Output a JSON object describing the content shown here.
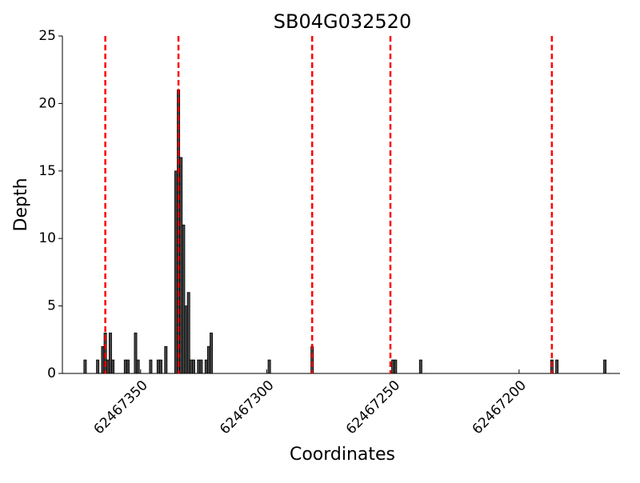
{
  "chart_data": {
    "type": "bar",
    "title": "SB04G032520",
    "xlabel": "Coordinates",
    "ylabel": "Depth",
    "x": [
      62467372,
      62467367,
      62467365,
      62467364,
      62467363,
      62467362,
      62467361,
      62467356,
      62467355,
      62467352,
      62467351,
      62467346,
      62467343,
      62467342,
      62467340,
      62467336,
      62467335,
      62467334,
      62467333,
      62467332,
      62467331,
      62467330,
      62467329,
      62467327,
      62467326,
      62467324,
      62467323,
      62467322,
      62467299,
      62467282,
      62467250,
      62467249,
      62467239,
      62467187,
      62467185,
      62467166
    ],
    "values": [
      1,
      1,
      2,
      3,
      1,
      3,
      1,
      1,
      1,
      3,
      1,
      1,
      1,
      1,
      2,
      15,
      21,
      16,
      11,
      5,
      6,
      1,
      1,
      1,
      1,
      1,
      2,
      3,
      1,
      2,
      1,
      1,
      1,
      1,
      1,
      1
    ],
    "color": "#444444",
    "vlines": [
      62467364,
      62467335,
      62467282,
      62467251,
      62467187
    ],
    "vline_color": "#ff0000",
    "xlim": [
      62467381,
      62467160
    ],
    "xticks": [
      62467350,
      62467300,
      62467250,
      62467200
    ],
    "ylim": [
      0,
      25
    ],
    "yticks": [
      0,
      5,
      10,
      15,
      20,
      25
    ]
  }
}
